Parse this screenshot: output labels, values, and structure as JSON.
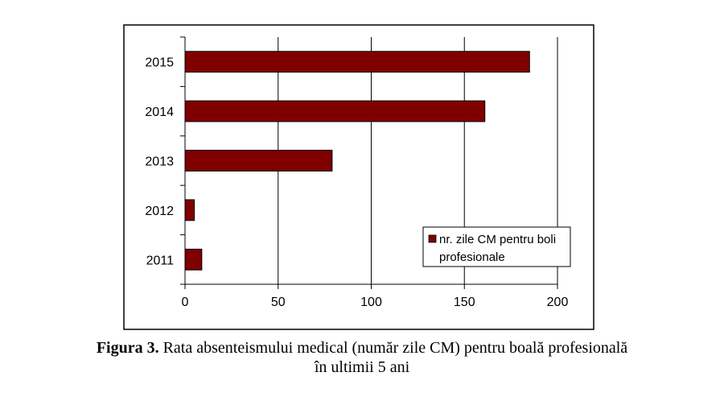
{
  "chart_data": {
    "type": "bar",
    "orientation": "horizontal",
    "categories": [
      "2011",
      "2012",
      "2013",
      "2014",
      "2015"
    ],
    "series": [
      {
        "name": "nr. zile CM pentru boli profesionale",
        "name_lines": [
          "nr. zile CM pentru boli",
          "profesionale"
        ],
        "values": [
          9,
          5,
          79,
          161,
          185
        ],
        "color": "#800000"
      }
    ],
    "xlim": [
      0,
      200
    ],
    "xticks": [
      0,
      50,
      100,
      150,
      200
    ],
    "grid": "vertical",
    "legend_position": "bottom-right"
  },
  "caption": {
    "label": "Figura 3.",
    "line1": "Rata absenteismului medical (număr zile CM) pentru boală profesională",
    "line2": "în ultimii 5 ani"
  }
}
